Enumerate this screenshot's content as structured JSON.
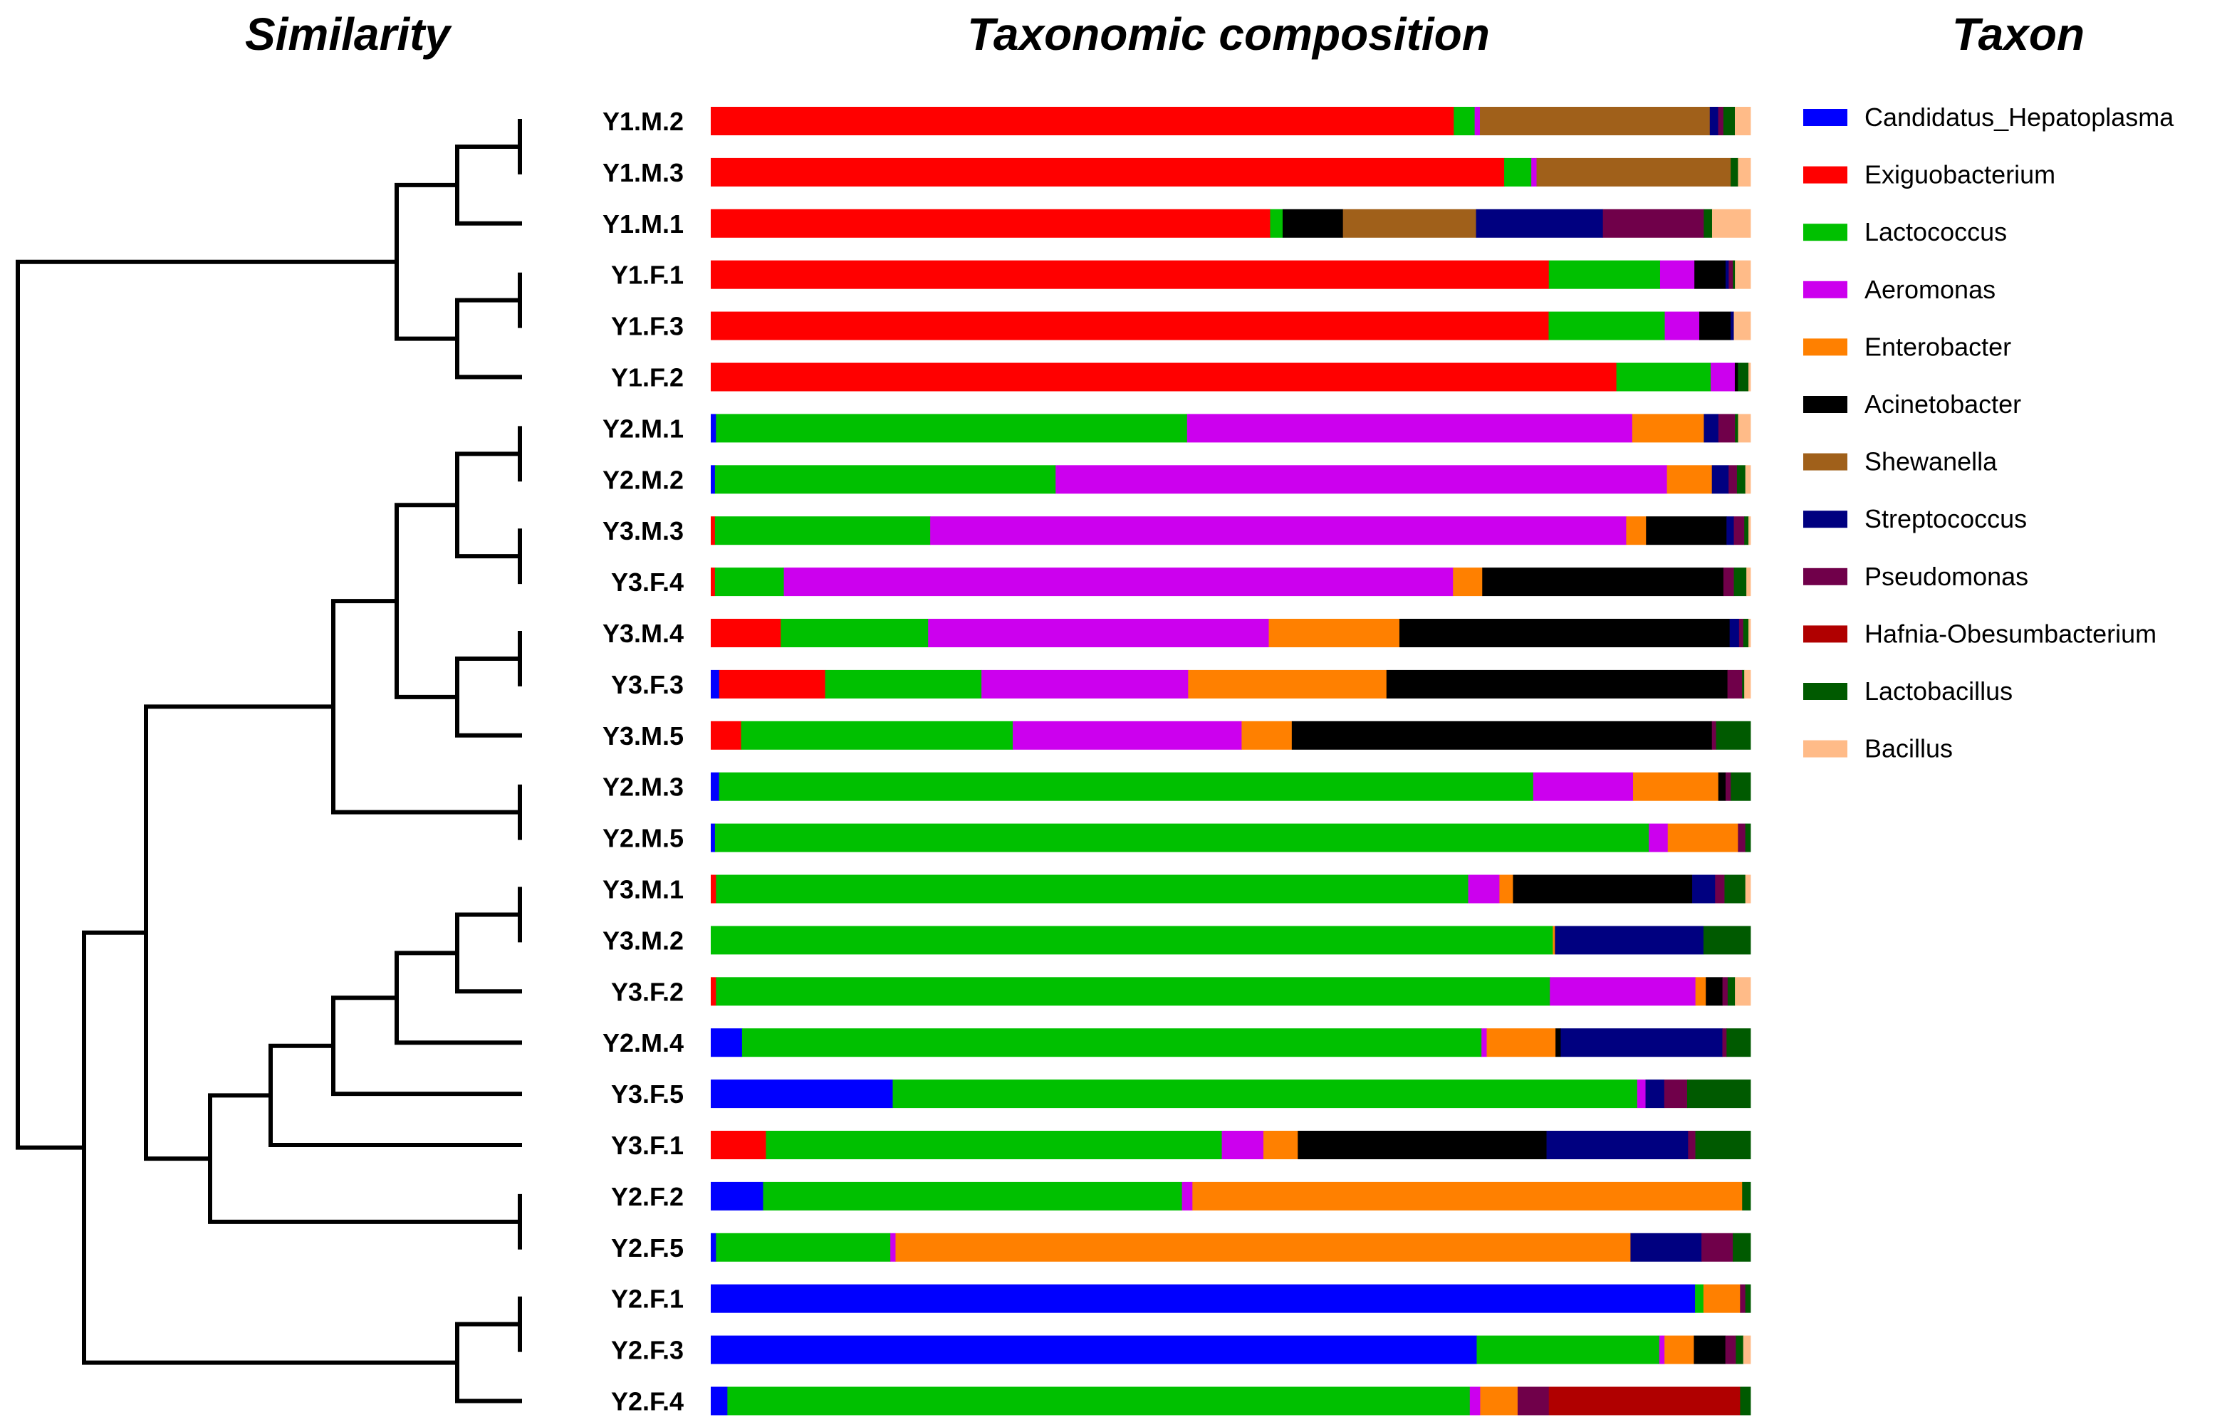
{
  "titles": {
    "similarity": "Similarity",
    "composition": "Taxonomic composition",
    "taxon": "Taxon"
  },
  "chart_data": {
    "type": "bar",
    "orientation": "horizontal",
    "stacked": true,
    "normalized": true,
    "title": "Taxonomic composition",
    "xlabel": "",
    "ylabel": "",
    "xlim": [
      0,
      1
    ],
    "legend_title": "Taxon",
    "legend_position": "right",
    "taxa": [
      {
        "name": "Candidatus_Hepatoplasma",
        "color": "#0000ff"
      },
      {
        "name": "Exiguobacterium",
        "color": "#ff0000"
      },
      {
        "name": "Lactococcus",
        "color": "#00c000"
      },
      {
        "name": "Aeromonas",
        "color": "#cc00ee"
      },
      {
        "name": "Enterobacter",
        "color": "#ff8000"
      },
      {
        "name": "Acinetobacter",
        "color": "#000000"
      },
      {
        "name": "Shewanella",
        "color": "#a0601a"
      },
      {
        "name": "Streptococcus",
        "color": "#000080"
      },
      {
        "name": "Pseudomonas",
        "color": "#70004a"
      },
      {
        "name": "Hafnia-Obesumbacterium",
        "color": "#b00000"
      },
      {
        "name": "Lactobacillus",
        "color": "#005a00"
      },
      {
        "name": "Bacillus",
        "color": "#ffbb88"
      }
    ],
    "categories": [
      "Y1.M.2",
      "Y1.M.3",
      "Y1.M.1",
      "Y1.F.1",
      "Y1.F.3",
      "Y1.F.2",
      "Y2.M.1",
      "Y2.M.2",
      "Y3.M.3",
      "Y3.F.4",
      "Y3.M.4",
      "Y3.F.3",
      "Y3.M.5",
      "Y2.M.3",
      "Y2.M.5",
      "Y3.M.1",
      "Y3.M.2",
      "Y3.F.2",
      "Y2.M.4",
      "Y3.F.5",
      "Y3.F.1",
      "Y2.F.2",
      "Y2.F.5",
      "Y2.F.1",
      "Y2.F.3",
      "Y2.F.4"
    ],
    "series": [
      {
        "name": "Candidatus_Hepatoplasma",
        "values": [
          0,
          0,
          0,
          0,
          0,
          0,
          0.005,
          0.004,
          0,
          0,
          0,
          0.008,
          0,
          0.008,
          0.004,
          0,
          0,
          0,
          0.03,
          0.175,
          0,
          0.05,
          0.005,
          0.94,
          0.73,
          0.016
        ]
      },
      {
        "name": "Exiguobacterium",
        "values": [
          0.711,
          0.76,
          0.538,
          0.806,
          0.801,
          0.864,
          0,
          0,
          0.004,
          0.004,
          0.067,
          0.101,
          0.029,
          0,
          0,
          0.005,
          0,
          0.005,
          0,
          0,
          0.053,
          0,
          0,
          0,
          0,
          0
        ]
      },
      {
        "name": "Lactococcus",
        "values": [
          0.02,
          0.026,
          0.012,
          0.107,
          0.111,
          0.09,
          0.454,
          0.326,
          0.206,
          0.066,
          0.141,
          0.149,
          0.26,
          0.783,
          0.891,
          0.722,
          0.805,
          0.802,
          0.709,
          0.716,
          0.438,
          0.4,
          0.167,
          0.008,
          0.174,
          0.714
        ]
      },
      {
        "name": "Aeromonas",
        "values": [
          0.005,
          0.005,
          0,
          0.033,
          0.033,
          0.023,
          0.429,
          0.585,
          0.666,
          0.641,
          0.326,
          0.197,
          0.219,
          0.096,
          0.018,
          0.03,
          0,
          0.14,
          0.005,
          0.008,
          0.04,
          0.01,
          0.005,
          0,
          0.005,
          0.01
        ]
      },
      {
        "name": "Enterobacter",
        "values": [
          0,
          0,
          0,
          0,
          0,
          0,
          0.069,
          0.043,
          0.019,
          0.028,
          0.125,
          0.189,
          0.048,
          0.082,
          0.067,
          0.013,
          0.002,
          0.01,
          0.066,
          0,
          0.033,
          0.525,
          0.704,
          0.035,
          0.028,
          0.036
        ]
      },
      {
        "name": "Acinetobacter",
        "values": [
          0,
          0,
          0.058,
          0.03,
          0.03,
          0.003,
          0,
          0,
          0.077,
          0.231,
          0.316,
          0.325,
          0.402,
          0.007,
          0,
          0.172,
          0,
          0.016,
          0.005,
          0,
          0.239,
          0,
          0,
          0,
          0.03,
          0
        ]
      },
      {
        "name": "Shewanella",
        "values": [
          0.22,
          0.186,
          0.128,
          0,
          0,
          0,
          0,
          0,
          0,
          0,
          0,
          0,
          0,
          0,
          0,
          0,
          0,
          0,
          0,
          0,
          0,
          0,
          0,
          0,
          0,
          0
        ]
      },
      {
        "name": "Streptococcus",
        "values": [
          0.008,
          0,
          0.122,
          0.003,
          0.003,
          0,
          0.014,
          0.016,
          0.007,
          0,
          0.009,
          0,
          0,
          0,
          0,
          0.022,
          0.142,
          0,
          0.155,
          0.018,
          0.136,
          0,
          0.068,
          0,
          0,
          0
        ]
      },
      {
        "name": "Pseudomonas",
        "values": [
          0.005,
          0,
          0.097,
          0.004,
          0,
          0,
          0.016,
          0.008,
          0.01,
          0.01,
          0.004,
          0.014,
          0.004,
          0.005,
          0.007,
          0.009,
          0,
          0.005,
          0.004,
          0.022,
          0.007,
          0,
          0.03,
          0.005,
          0.01,
          0.03
        ]
      },
      {
        "name": "Hafnia-Obesumbacterium",
        "values": [
          0,
          0,
          0,
          0,
          0,
          0,
          0,
          0,
          0,
          0,
          0,
          0,
          0,
          0,
          0,
          0,
          0,
          0,
          0,
          0,
          0,
          0,
          0,
          0,
          0,
          0.184
        ]
      },
      {
        "name": "Lactobacillus",
        "values": [
          0.011,
          0.007,
          0.008,
          0.002,
          0,
          0.01,
          0.003,
          0.008,
          0.004,
          0.012,
          0.005,
          0.002,
          0.033,
          0.019,
          0.005,
          0.02,
          0.045,
          0.007,
          0.023,
          0.061,
          0.053,
          0.008,
          0.017,
          0.005,
          0.007,
          0.01
        ]
      },
      {
        "name": "Bacillus",
        "values": [
          0.015,
          0.012,
          0.037,
          0.015,
          0.016,
          0.002,
          0.012,
          0.005,
          0.002,
          0.004,
          0.002,
          0.006,
          0,
          0,
          0,
          0.005,
          0,
          0.015,
          0,
          0,
          0,
          0,
          0,
          0,
          0.007,
          0
        ]
      }
    ]
  }
}
